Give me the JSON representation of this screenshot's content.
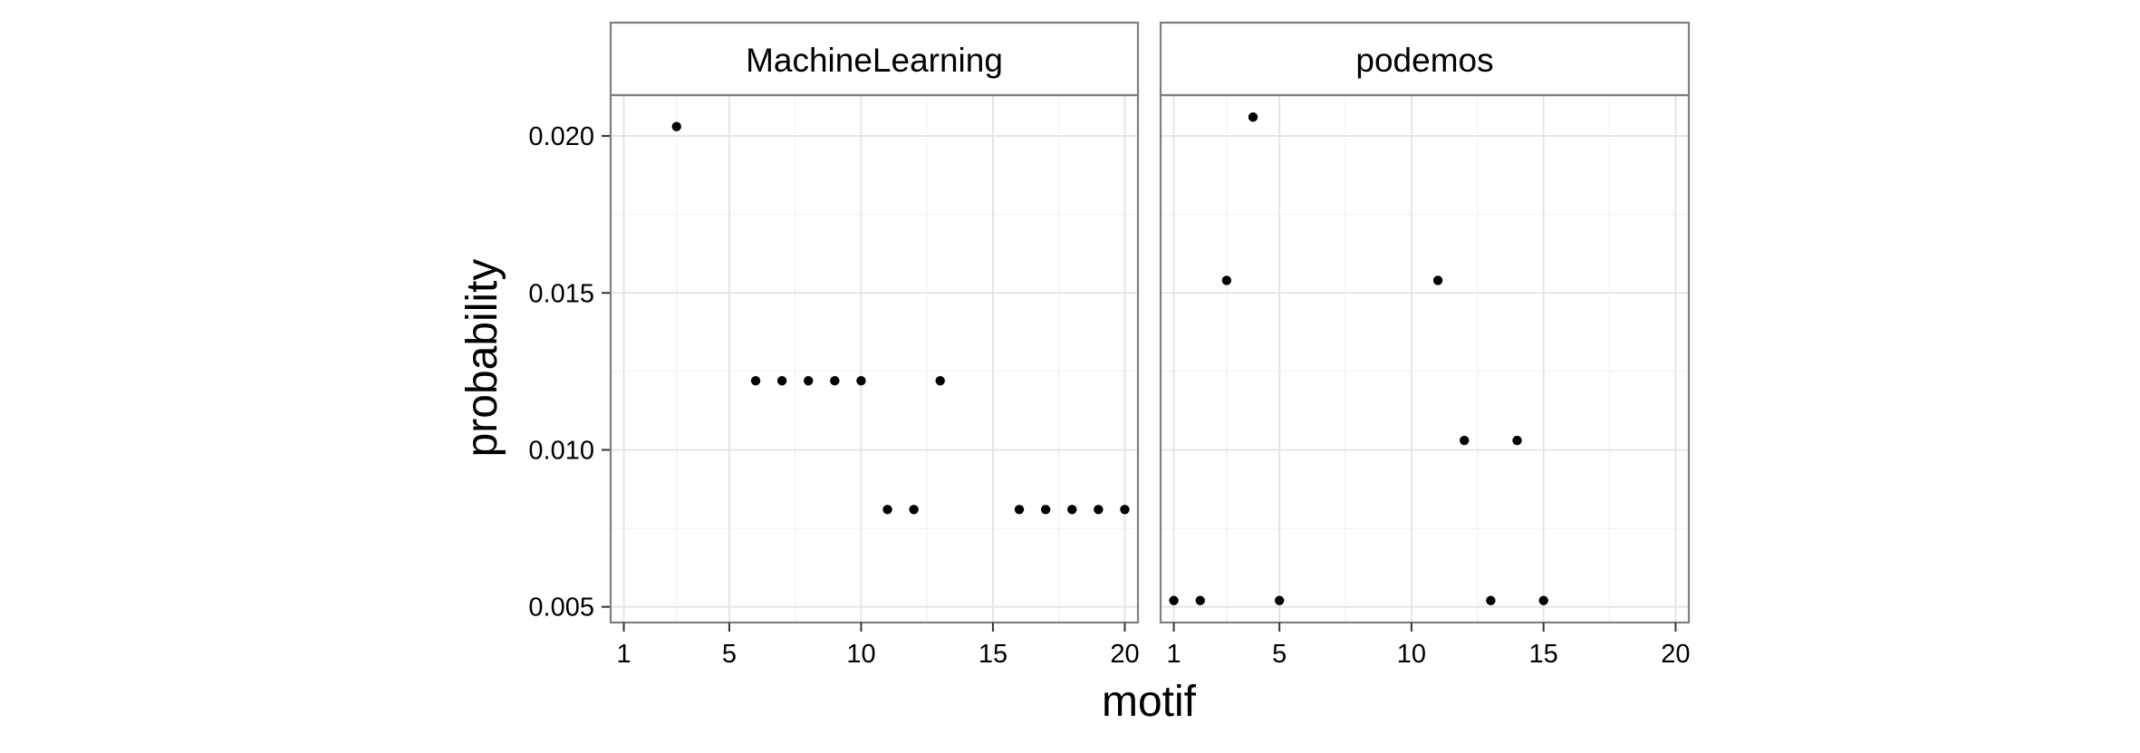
{
  "chart_data": {
    "type": "scatter",
    "title": "",
    "xlabel": "motif",
    "ylabel": "probability",
    "xlim": [
      0.5,
      20.5
    ],
    "ylim": [
      0.0045,
      0.0213
    ],
    "x_ticks": [
      1,
      5,
      10,
      15,
      20
    ],
    "y_ticks": [
      0.005,
      0.01,
      0.015,
      0.02
    ],
    "y_tick_labels": [
      "0.005",
      "0.010",
      "0.015",
      "0.020"
    ],
    "grid": true,
    "point_color": "#000000",
    "panels": [
      {
        "name": "MachineLearning",
        "points": [
          {
            "x": 3,
            "y": 0.0203
          },
          {
            "x": 6,
            "y": 0.0122
          },
          {
            "x": 7,
            "y": 0.0122
          },
          {
            "x": 8,
            "y": 0.0122
          },
          {
            "x": 9,
            "y": 0.0122
          },
          {
            "x": 10,
            "y": 0.0122
          },
          {
            "x": 11,
            "y": 0.0081
          },
          {
            "x": 12,
            "y": 0.0081
          },
          {
            "x": 13,
            "y": 0.0122
          },
          {
            "x": 16,
            "y": 0.0081
          },
          {
            "x": 17,
            "y": 0.0081
          },
          {
            "x": 18,
            "y": 0.0081
          },
          {
            "x": 19,
            "y": 0.0081
          },
          {
            "x": 20,
            "y": 0.0081
          }
        ]
      },
      {
        "name": "podemos",
        "points": [
          {
            "x": 1,
            "y": 0.0052
          },
          {
            "x": 2,
            "y": 0.0052
          },
          {
            "x": 3,
            "y": 0.0154
          },
          {
            "x": 4,
            "y": 0.0206
          },
          {
            "x": 5,
            "y": 0.0052
          },
          {
            "x": 11,
            "y": 0.0154
          },
          {
            "x": 12,
            "y": 0.0103
          },
          {
            "x": 13,
            "y": 0.0052
          },
          {
            "x": 14,
            "y": 0.0103
          },
          {
            "x": 15,
            "y": 0.0052
          }
        ]
      }
    ]
  }
}
